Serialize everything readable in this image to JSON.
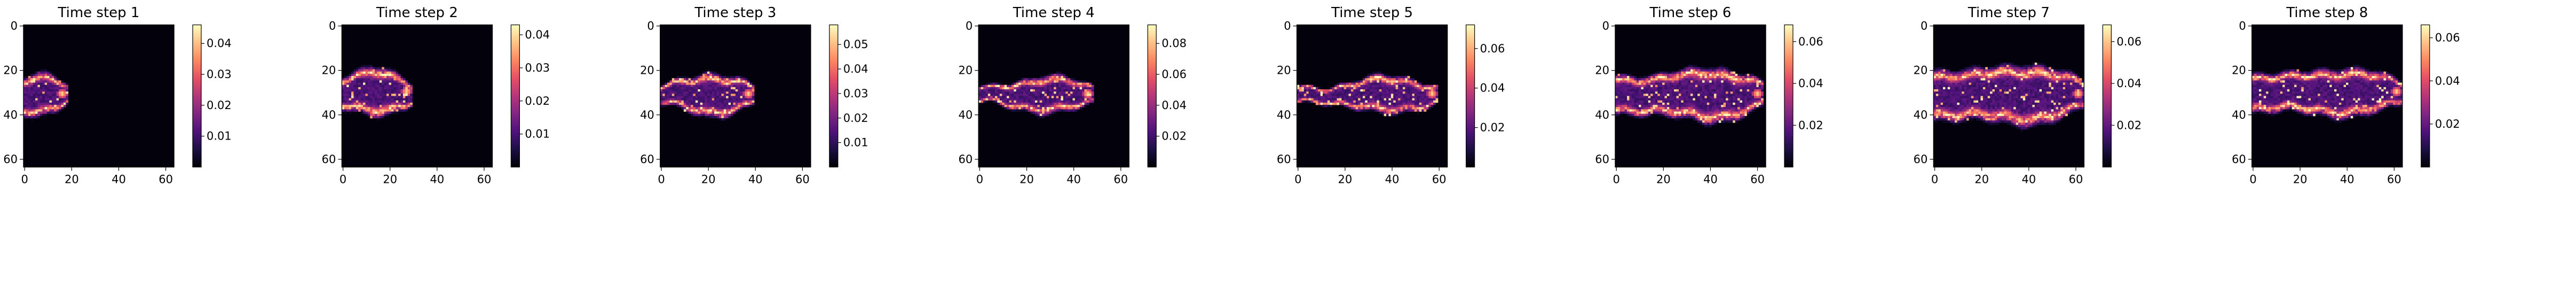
{
  "chart_data": [
    {
      "type": "heatmap",
      "title": "Time step 1",
      "colormap": "magma",
      "grid": false,
      "x_ticks": [
        "0",
        "20",
        "40",
        "60"
      ],
      "y_ticks": [
        "0",
        "20",
        "40",
        "60"
      ],
      "colorbar_ticks": [
        "0.01",
        "0.02",
        "0.03",
        "0.04"
      ],
      "colorbar_range": [
        0.0,
        0.046
      ],
      "plume": {
        "front_x": 18,
        "head_center_x": 5,
        "center_y": 31,
        "half_width": 8,
        "tail_half_width": 3,
        "peak": 0.046
      }
    },
    {
      "type": "heatmap",
      "title": "Time step 2",
      "colormap": "magma",
      "grid": false,
      "x_ticks": [
        "0",
        "20",
        "40",
        "60"
      ],
      "y_ticks": [
        "0",
        "20",
        "40",
        "60"
      ],
      "colorbar_ticks": [
        "0.01",
        "0.02",
        "0.03",
        "0.04"
      ],
      "colorbar_range": [
        0.0,
        0.043
      ],
      "plume": {
        "front_x": 29,
        "head_center_x": 12,
        "center_y": 30,
        "half_width": 9,
        "tail_half_width": 3,
        "peak": 0.043
      }
    },
    {
      "type": "heatmap",
      "title": "Time step 3",
      "colormap": "magma",
      "grid": false,
      "x_ticks": [
        "0",
        "20",
        "40",
        "60"
      ],
      "y_ticks": [
        "0",
        "20",
        "40",
        "60"
      ],
      "colorbar_ticks": [
        "0.01",
        "0.02",
        "0.03",
        "0.04",
        "0.05"
      ],
      "colorbar_range": [
        0.0,
        0.058
      ],
      "plume": {
        "front_x": 39,
        "head_center_x": 20,
        "center_y": 31,
        "half_width": 8,
        "tail_half_width": 3,
        "peak": 0.058
      }
    },
    {
      "type": "heatmap",
      "title": "Time step 4",
      "colormap": "magma",
      "grid": false,
      "x_ticks": [
        "0",
        "20",
        "40",
        "60"
      ],
      "y_ticks": [
        "0",
        "20",
        "40",
        "60"
      ],
      "colorbar_ticks": [
        "0.02",
        "0.04",
        "0.06",
        "0.08"
      ],
      "colorbar_range": [
        0.0,
        0.092
      ],
      "plume": {
        "front_x": 48,
        "head_center_x": 27,
        "center_y": 31,
        "half_width": 7,
        "tail_half_width": 3,
        "peak": 0.092
      }
    },
    {
      "type": "heatmap",
      "title": "Time step 5",
      "colormap": "magma",
      "grid": false,
      "x_ticks": [
        "0",
        "20",
        "40",
        "60"
      ],
      "y_ticks": [
        "0",
        "20",
        "40",
        "60"
      ],
      "colorbar_ticks": [
        "0.02",
        "0.04",
        "0.06"
      ],
      "colorbar_range": [
        0.0,
        0.072
      ],
      "plume": {
        "front_x": 59,
        "head_center_x": 35,
        "center_y": 31,
        "half_width": 7,
        "tail_half_width": 3,
        "peak": 0.072
      }
    },
    {
      "type": "heatmap",
      "title": "Time step 6",
      "colormap": "magma",
      "grid": false,
      "x_ticks": [
        "0",
        "20",
        "40",
        "60"
      ],
      "y_ticks": [
        "0",
        "20",
        "40",
        "60"
      ],
      "colorbar_ticks": [
        "0.02",
        "0.04",
        "0.06"
      ],
      "colorbar_range": [
        0.0,
        0.068
      ],
      "plume": {
        "front_x": 62,
        "head_center_x": 38,
        "center_y": 31,
        "half_width": 10,
        "tail_half_width": 7,
        "peak": 0.068
      }
    },
    {
      "type": "heatmap",
      "title": "Time step 7",
      "colormap": "magma",
      "grid": false,
      "x_ticks": [
        "0",
        "20",
        "40",
        "60"
      ],
      "y_ticks": [
        "0",
        "20",
        "40",
        "60"
      ],
      "colorbar_ticks": [
        "0.02",
        "0.04",
        "0.06"
      ],
      "colorbar_range": [
        0.0,
        0.068
      ],
      "plume": {
        "front_x": 63,
        "head_center_x": 38,
        "center_y": 31,
        "half_width": 11,
        "tail_half_width": 9,
        "peak": 0.068
      }
    },
    {
      "type": "heatmap",
      "title": "Time step 8",
      "colormap": "magma",
      "grid": false,
      "x_ticks": [
        "0",
        "20",
        "40",
        "60"
      ],
      "y_ticks": [
        "0",
        "20",
        "40",
        "60"
      ],
      "colorbar_ticks": [
        "0.02",
        "0.04",
        "0.06"
      ],
      "colorbar_range": [
        0.0,
        0.066
      ],
      "plume": {
        "front_x": 63,
        "head_center_x": 38,
        "center_y": 30,
        "half_width": 9,
        "tail_half_width": 7,
        "peak": 0.066
      }
    }
  ]
}
